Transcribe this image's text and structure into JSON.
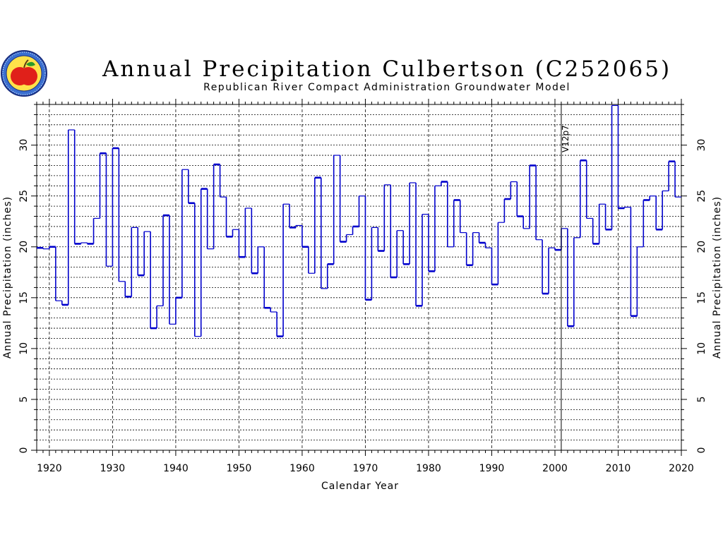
{
  "header": {
    "title": "Annual  Precipitation  Culbertson  (C252065)",
    "subtitle": "Republican  River  Compact  Administration  Groundwater  Model",
    "logo": {
      "icon": "apple-seal-logo",
      "ring_text": "REPUBLICAN RIVER COMPACT"
    }
  },
  "chart_data": {
    "type": "line",
    "step": true,
    "xlabel": "Calendar Year",
    "ylabel_left": "Annual Precipitation (inches)",
    "ylabel_right": "Annual Precipitation (inches)",
    "xlim": [
      1918,
      2020
    ],
    "ylim": [
      0,
      34
    ],
    "x_ticks": [
      1920,
      1930,
      1940,
      1950,
      1960,
      1970,
      1980,
      1990,
      2000,
      2010,
      2020
    ],
    "y_ticks": [
      0,
      5,
      10,
      15,
      20,
      25,
      30
    ],
    "grid": true,
    "annotation": {
      "text": "V12p7",
      "x": 2001
    },
    "series_color": "#0000cc",
    "x": [
      1918,
      1919,
      1920,
      1921,
      1922,
      1923,
      1924,
      1925,
      1926,
      1927,
      1928,
      1929,
      1930,
      1931,
      1932,
      1933,
      1934,
      1935,
      1936,
      1937,
      1938,
      1939,
      1940,
      1941,
      1942,
      1943,
      1944,
      1945,
      1946,
      1947,
      1948,
      1949,
      1950,
      1951,
      1952,
      1953,
      1954,
      1955,
      1956,
      1957,
      1958,
      1959,
      1960,
      1961,
      1962,
      1963,
      1964,
      1965,
      1966,
      1967,
      1968,
      1969,
      1970,
      1971,
      1972,
      1973,
      1974,
      1975,
      1976,
      1977,
      1978,
      1979,
      1980,
      1981,
      1982,
      1983,
      1984,
      1985,
      1986,
      1987,
      1988,
      1989,
      1990,
      1991,
      1992,
      1993,
      1994,
      1995,
      1996,
      1997,
      1998,
      1999,
      2000,
      2001,
      2002,
      2003,
      2004,
      2005,
      2006,
      2007,
      2008,
      2009,
      2010,
      2011,
      2012,
      2013,
      2014,
      2015,
      2016,
      2017,
      2018,
      2019
    ],
    "values": [
      19.9,
      19.8,
      20.0,
      14.7,
      14.3,
      31.5,
      20.3,
      20.4,
      20.3,
      22.8,
      29.2,
      18.1,
      29.7,
      16.6,
      15.1,
      21.9,
      17.2,
      21.5,
      12.0,
      14.2,
      23.1,
      12.4,
      15.0,
      27.6,
      24.3,
      11.2,
      25.7,
      19.8,
      28.1,
      24.9,
      21.0,
      21.7,
      19.0,
      23.8,
      17.4,
      20.0,
      14.0,
      13.6,
      11.2,
      24.2,
      21.9,
      22.1,
      20.0,
      17.4,
      26.8,
      15.9,
      18.3,
      29.0,
      20.5,
      21.2,
      22.0,
      25.0,
      14.8,
      21.9,
      19.6,
      26.1,
      17.0,
      21.6,
      18.3,
      26.3,
      14.2,
      23.2,
      17.6,
      26.0,
      26.4,
      20.0,
      24.6,
      21.4,
      18.2,
      21.4,
      20.4,
      19.9,
      16.3,
      22.4,
      24.7,
      26.4,
      23.0,
      21.8,
      28.0,
      20.7,
      15.4,
      19.9,
      19.7,
      21.8,
      12.2,
      20.9,
      28.5,
      22.8,
      20.3,
      24.2,
      21.7,
      33.9,
      23.8,
      23.9,
      13.2,
      20.0,
      24.6,
      25.0,
      21.7,
      25.5,
      28.4,
      24.9
    ]
  }
}
